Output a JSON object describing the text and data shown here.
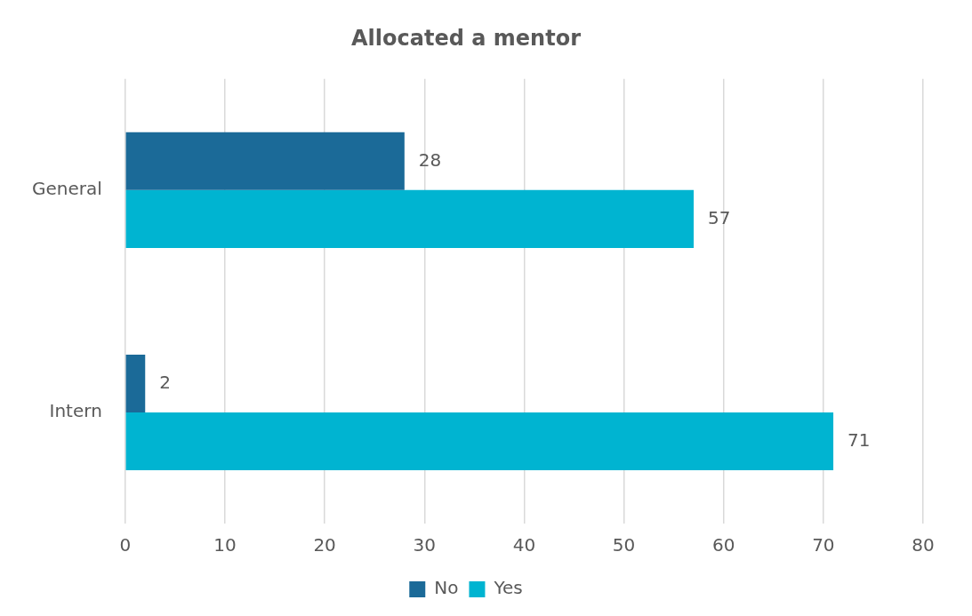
{
  "chart_data": {
    "type": "bar",
    "orientation": "horizontal",
    "title": "Allocated a mentor",
    "categories": [
      "General",
      "Intern"
    ],
    "series": [
      {
        "name": "No",
        "color": "#1b6a98",
        "values": [
          28,
          2
        ]
      },
      {
        "name": "Yes",
        "color": "#00b4d1",
        "values": [
          57,
          71
        ]
      }
    ],
    "xlim": [
      0,
      80
    ],
    "xticks": [
      0,
      10,
      20,
      30,
      40,
      50,
      60,
      70,
      80
    ],
    "grid": "x",
    "legend": "bottom",
    "data_labels": true
  }
}
